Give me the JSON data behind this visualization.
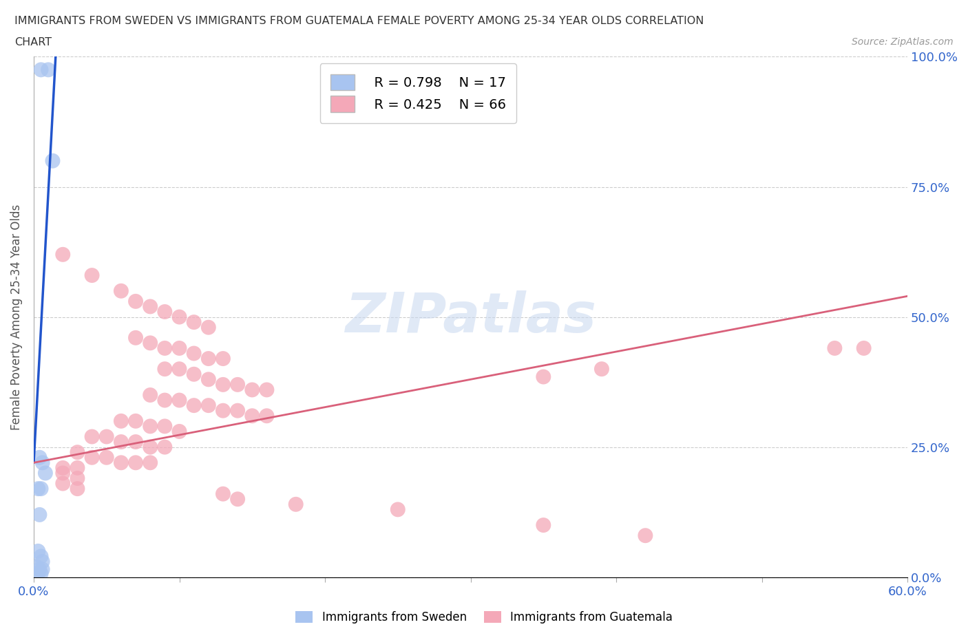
{
  "title_line1": "IMMIGRANTS FROM SWEDEN VS IMMIGRANTS FROM GUATEMALA FEMALE POVERTY AMONG 25-34 YEAR OLDS CORRELATION",
  "title_line2": "CHART",
  "source": "Source: ZipAtlas.com",
  "ylabel": "Female Poverty Among 25-34 Year Olds",
  "xlim": [
    0,
    0.6
  ],
  "ylim": [
    0,
    1.0
  ],
  "sweden_color": "#a8c4f0",
  "guatemala_color": "#f4a8b8",
  "sweden_line_color": "#2255cc",
  "guatemala_line_color": "#d9607a",
  "legend_R_sweden": "R = 0.798",
  "legend_N_sweden": "N = 17",
  "legend_R_guatemala": "R = 0.425",
  "legend_N_guatemala": "N = 66",
  "watermark": "ZIPatlas",
  "sweden_points": [
    [
      0.005,
      0.975
    ],
    [
      0.01,
      0.975
    ],
    [
      0.013,
      0.8
    ],
    [
      0.004,
      0.23
    ],
    [
      0.006,
      0.22
    ],
    [
      0.008,
      0.2
    ],
    [
      0.003,
      0.17
    ],
    [
      0.005,
      0.17
    ],
    [
      0.004,
      0.12
    ],
    [
      0.003,
      0.05
    ],
    [
      0.005,
      0.04
    ],
    [
      0.006,
      0.03
    ],
    [
      0.002,
      0.02
    ],
    [
      0.004,
      0.015
    ],
    [
      0.006,
      0.015
    ],
    [
      0.003,
      0.008
    ],
    [
      0.005,
      0.007
    ]
  ],
  "guatemala_points": [
    [
      0.02,
      0.62
    ],
    [
      0.04,
      0.58
    ],
    [
      0.06,
      0.55
    ],
    [
      0.07,
      0.53
    ],
    [
      0.08,
      0.52
    ],
    [
      0.09,
      0.51
    ],
    [
      0.1,
      0.5
    ],
    [
      0.11,
      0.49
    ],
    [
      0.12,
      0.48
    ],
    [
      0.07,
      0.46
    ],
    [
      0.08,
      0.45
    ],
    [
      0.09,
      0.44
    ],
    [
      0.1,
      0.44
    ],
    [
      0.11,
      0.43
    ],
    [
      0.12,
      0.42
    ],
    [
      0.13,
      0.42
    ],
    [
      0.09,
      0.4
    ],
    [
      0.1,
      0.4
    ],
    [
      0.11,
      0.39
    ],
    [
      0.12,
      0.38
    ],
    [
      0.13,
      0.37
    ],
    [
      0.14,
      0.37
    ],
    [
      0.15,
      0.36
    ],
    [
      0.16,
      0.36
    ],
    [
      0.08,
      0.35
    ],
    [
      0.09,
      0.34
    ],
    [
      0.1,
      0.34
    ],
    [
      0.11,
      0.33
    ],
    [
      0.12,
      0.33
    ],
    [
      0.13,
      0.32
    ],
    [
      0.14,
      0.32
    ],
    [
      0.15,
      0.31
    ],
    [
      0.16,
      0.31
    ],
    [
      0.06,
      0.3
    ],
    [
      0.07,
      0.3
    ],
    [
      0.08,
      0.29
    ],
    [
      0.09,
      0.29
    ],
    [
      0.1,
      0.28
    ],
    [
      0.04,
      0.27
    ],
    [
      0.05,
      0.27
    ],
    [
      0.06,
      0.26
    ],
    [
      0.07,
      0.26
    ],
    [
      0.08,
      0.25
    ],
    [
      0.09,
      0.25
    ],
    [
      0.03,
      0.24
    ],
    [
      0.04,
      0.23
    ],
    [
      0.05,
      0.23
    ],
    [
      0.06,
      0.22
    ],
    [
      0.07,
      0.22
    ],
    [
      0.08,
      0.22
    ],
    [
      0.02,
      0.21
    ],
    [
      0.03,
      0.21
    ],
    [
      0.02,
      0.2
    ],
    [
      0.03,
      0.19
    ],
    [
      0.02,
      0.18
    ],
    [
      0.03,
      0.17
    ],
    [
      0.13,
      0.16
    ],
    [
      0.14,
      0.15
    ],
    [
      0.18,
      0.14
    ],
    [
      0.25,
      0.13
    ],
    [
      0.35,
      0.1
    ],
    [
      0.42,
      0.08
    ],
    [
      0.35,
      0.385
    ],
    [
      0.39,
      0.4
    ],
    [
      0.55,
      0.44
    ],
    [
      0.57,
      0.44
    ]
  ],
  "sw_line": [
    [
      0.0,
      0.22
    ],
    [
      0.016,
      1.05
    ]
  ],
  "gu_line": [
    [
      0.0,
      0.22
    ],
    [
      0.6,
      0.54
    ]
  ]
}
